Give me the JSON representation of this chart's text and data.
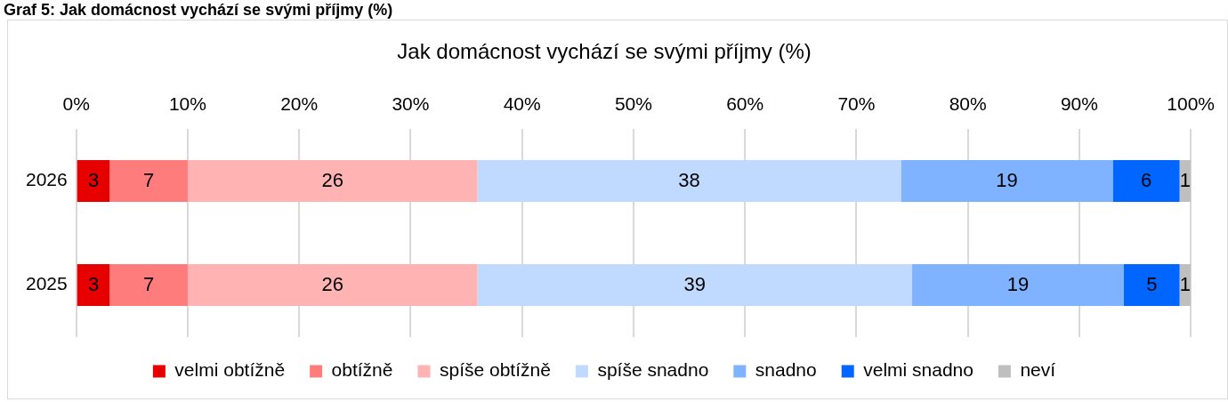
{
  "chart_data": {
    "type": "bar",
    "orientation": "horizontal",
    "stacked": true,
    "title": "Jak domácnost vychází se svými příjmy (%)",
    "annotations": [
      "Graf 5: Jak domácnost vychází se svými příjmy (%)"
    ],
    "categories": [
      "2026",
      "2025"
    ],
    "series": [
      {
        "name": "velmi obtížně",
        "color": "#e60000",
        "values": [
          3,
          3
        ]
      },
      {
        "name": "obtížně",
        "color": "#ff7c7c",
        "values": [
          7,
          7
        ]
      },
      {
        "name": "spíše obtížně",
        "color": "#ffb3b3",
        "values": [
          26,
          26
        ]
      },
      {
        "name": "spíše snadno",
        "color": "#c0daff",
        "values": [
          38,
          39
        ]
      },
      {
        "name": "snadno",
        "color": "#7fb2ff",
        "values": [
          19,
          19
        ]
      },
      {
        "name": "velmi snadno",
        "color": "#0066ff",
        "values": [
          6,
          5
        ]
      },
      {
        "name": "neví",
        "color": "#bfbfbf",
        "values": [
          1,
          1
        ]
      }
    ],
    "xlim": [
      0,
      100
    ],
    "xticks": [
      {
        "value": 0,
        "label": "0%"
      },
      {
        "value": 10,
        "label": "10%"
      },
      {
        "value": 20,
        "label": "20%"
      },
      {
        "value": 30,
        "label": "30%"
      },
      {
        "value": 40,
        "label": "40%"
      },
      {
        "value": 50,
        "label": "50%"
      },
      {
        "value": 60,
        "label": "60%"
      },
      {
        "value": 70,
        "label": "70%"
      },
      {
        "value": 80,
        "label": "80%"
      },
      {
        "value": 90,
        "label": "90%"
      },
      {
        "value": 100,
        "label": "100%"
      }
    ],
    "grid": "x",
    "legend": "bottom",
    "data_labels": true
  }
}
